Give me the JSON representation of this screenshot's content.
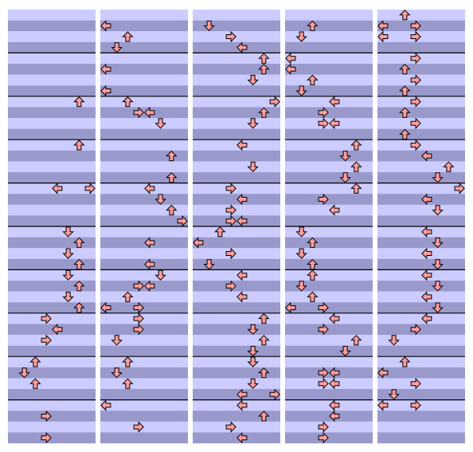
{
  "columns": [
    {
      "notes": [
        [
          8,
          6
        ],
        [
          12,
          6
        ],
        [
          16,
          4
        ],
        [
          16,
          7
        ],
        [
          20,
          5
        ],
        [
          21,
          6
        ],
        [
          22,
          5
        ],
        [
          23,
          6
        ],
        [
          24,
          5
        ],
        [
          25,
          6
        ],
        [
          26,
          5
        ],
        [
          27,
          6
        ],
        [
          28,
          3
        ],
        [
          29,
          4
        ],
        [
          30,
          3
        ],
        [
          32,
          2
        ],
        [
          33,
          1
        ],
        [
          34,
          2
        ],
        [
          37,
          3
        ],
        [
          39,
          3
        ]
      ]
    },
    {
      "notes": [
        [
          1,
          0
        ],
        [
          2,
          2
        ],
        [
          3,
          1
        ],
        [
          5,
          0
        ],
        [
          7,
          0
        ],
        [
          8,
          2
        ],
        [
          9,
          3
        ],
        [
          9,
          4
        ],
        [
          10,
          5
        ],
        [
          13,
          6
        ],
        [
          15,
          6
        ],
        [
          16,
          4
        ],
        [
          17,
          5
        ],
        [
          18,
          6
        ],
        [
          19,
          7
        ],
        [
          21,
          4
        ],
        [
          23,
          4
        ],
        [
          24,
          5
        ],
        [
          25,
          3
        ],
        [
          25,
          4
        ],
        [
          26,
          2
        ],
        [
          27,
          0
        ],
        [
          27,
          3
        ],
        [
          28,
          3
        ],
        [
          29,
          3
        ],
        [
          30,
          1
        ],
        [
          32,
          2
        ],
        [
          33,
          1
        ],
        [
          34,
          2
        ],
        [
          36,
          0
        ],
        [
          38,
          3
        ]
      ]
    },
    {
      "notes": [
        [
          1,
          1
        ],
        [
          2,
          3
        ],
        [
          3,
          4
        ],
        [
          4,
          6
        ],
        [
          5,
          6
        ],
        [
          6,
          5
        ],
        [
          8,
          7
        ],
        [
          9,
          6
        ],
        [
          10,
          5
        ],
        [
          12,
          4
        ],
        [
          14,
          5
        ],
        [
          16,
          3
        ],
        [
          17,
          4
        ],
        [
          18,
          3
        ],
        [
          19,
          3
        ],
        [
          19,
          4
        ],
        [
          20,
          2
        ],
        [
          21,
          0
        ],
        [
          22,
          3
        ],
        [
          23,
          1
        ],
        [
          24,
          4
        ],
        [
          25,
          3
        ],
        [
          26,
          4
        ],
        [
          28,
          6
        ],
        [
          29,
          5
        ],
        [
          30,
          6
        ],
        [
          31,
          5
        ],
        [
          32,
          5
        ],
        [
          33,
          6
        ],
        [
          34,
          5
        ],
        [
          35,
          4
        ],
        [
          35,
          7
        ],
        [
          36,
          4
        ],
        [
          37,
          6
        ],
        [
          38,
          3
        ],
        [
          39,
          4
        ]
      ]
    },
    {
      "notes": [
        [
          1,
          2
        ],
        [
          2,
          1
        ],
        [
          4,
          0
        ],
        [
          5,
          0
        ],
        [
          6,
          2
        ],
        [
          7,
          1
        ],
        [
          8,
          4
        ],
        [
          9,
          3
        ],
        [
          10,
          3
        ],
        [
          10,
          4
        ],
        [
          12,
          6
        ],
        [
          13,
          5
        ],
        [
          14,
          6
        ],
        [
          15,
          5
        ],
        [
          16,
          6
        ],
        [
          17,
          3
        ],
        [
          18,
          4
        ],
        [
          20,
          1
        ],
        [
          21,
          2
        ],
        [
          22,
          1
        ],
        [
          23,
          2
        ],
        [
          24,
          2
        ],
        [
          25,
          1
        ],
        [
          26,
          2
        ],
        [
          27,
          0
        ],
        [
          27,
          3
        ],
        [
          28,
          4
        ],
        [
          29,
          3
        ],
        [
          30,
          6
        ],
        [
          31,
          5
        ],
        [
          33,
          3
        ],
        [
          33,
          4
        ],
        [
          34,
          3
        ],
        [
          34,
          4
        ],
        [
          36,
          4
        ],
        [
          37,
          4
        ],
        [
          38,
          3
        ],
        [
          39,
          3
        ]
      ]
    },
    {
      "notes": [
        [
          0,
          2
        ],
        [
          1,
          0
        ],
        [
          1,
          3
        ],
        [
          2,
          0
        ],
        [
          2,
          3
        ],
        [
          4,
          3
        ],
        [
          5,
          2
        ],
        [
          6,
          3
        ],
        [
          7,
          2
        ],
        [
          8,
          3
        ],
        [
          9,
          2
        ],
        [
          10,
          3
        ],
        [
          11,
          2
        ],
        [
          12,
          3
        ],
        [
          13,
          4
        ],
        [
          14,
          6
        ],
        [
          15,
          5
        ],
        [
          16,
          7
        ],
        [
          17,
          4
        ],
        [
          18,
          5
        ],
        [
          20,
          4
        ],
        [
          21,
          5
        ],
        [
          22,
          4
        ],
        [
          23,
          5
        ],
        [
          24,
          4
        ],
        [
          25,
          5
        ],
        [
          26,
          4
        ],
        [
          27,
          5
        ],
        [
          28,
          4
        ],
        [
          29,
          3
        ],
        [
          30,
          1
        ],
        [
          32,
          2
        ],
        [
          33,
          0
        ],
        [
          34,
          3
        ],
        [
          35,
          1
        ],
        [
          36,
          0
        ],
        [
          36,
          3
        ]
      ]
    }
  ]
}
